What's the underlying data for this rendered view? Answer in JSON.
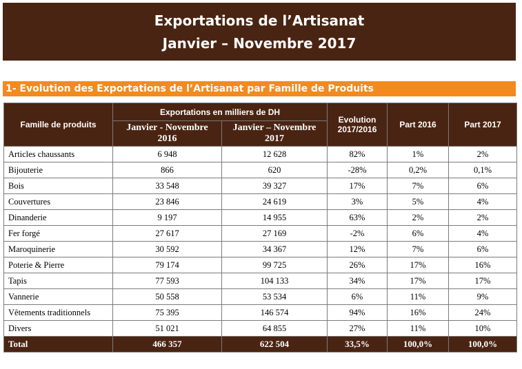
{
  "banner": {
    "title_line1": "Exportations de l’Artisanat",
    "title_line2": "Janvier – Novembre 2017"
  },
  "section": {
    "title": "1- Evolution des Exportations de l’Artisanat par Famille  de Produits"
  },
  "table": {
    "headers": {
      "family": "Famille de produits",
      "exports_group": "Exportations en milliers de DH",
      "period_2016": "Janvier - Novembre 2016",
      "period_2017": "Janvier – Novembre 2017",
      "evolution": "Evolution 2017/2016",
      "part_2016": "Part  2016",
      "part_2017": "Part  2017"
    },
    "rows": [
      {
        "name": "Articles chaussants",
        "v2016": "6 948",
        "v2017": "12 628",
        "evol": "82%",
        "p2016": "1%",
        "p2017": "2%"
      },
      {
        "name": "Bijouterie",
        "v2016": "866",
        "v2017": "620",
        "evol": "-28%",
        "p2016": "0,2%",
        "p2017": "0,1%"
      },
      {
        "name": "Bois",
        "v2016": "33 548",
        "v2017": "39 327",
        "evol": "17%",
        "p2016": "7%",
        "p2017": "6%"
      },
      {
        "name": "Couvertures",
        "v2016": "23 846",
        "v2017": "24 619",
        "evol": "3%",
        "p2016": "5%",
        "p2017": "4%"
      },
      {
        "name": "Dinanderie",
        "v2016": "9 197",
        "v2017": "14 955",
        "evol": "63%",
        "p2016": "2%",
        "p2017": "2%"
      },
      {
        "name": "Fer forgé",
        "v2016": "27 617",
        "v2017": "27 169",
        "evol": "-2%",
        "p2016": "6%",
        "p2017": "4%"
      },
      {
        "name": "Maroquinerie",
        "v2016": "30 592",
        "v2017": "34 367",
        "evol": "12%",
        "p2016": "7%",
        "p2017": "6%"
      },
      {
        "name": "Poterie & Pierre",
        "v2016": "79 174",
        "v2017": "99 725",
        "evol": "26%",
        "p2016": "17%",
        "p2017": "16%"
      },
      {
        "name": "Tapis",
        "v2016": "77 593",
        "v2017": "104 133",
        "evol": "34%",
        "p2016": "17%",
        "p2017": "17%"
      },
      {
        "name": "Vannerie",
        "v2016": "50 558",
        "v2017": "53 534",
        "evol": "6%",
        "p2016": "11%",
        "p2017": "9%"
      },
      {
        "name": "Vêtements traditionnels",
        "v2016": "75 395",
        "v2017": "146 574",
        "evol": "94%",
        "p2016": "16%",
        "p2017": "24%"
      },
      {
        "name": "Divers",
        "v2016": "51 021",
        "v2017": "64 855",
        "evol": "27%",
        "p2016": "11%",
        "p2017": "10%"
      }
    ],
    "total": {
      "name": "Total",
      "v2016": "466 357",
      "v2017": "622 504",
      "evol": "33,5%",
      "p2016": "100,0%",
      "p2017": "100,0%"
    }
  }
}
